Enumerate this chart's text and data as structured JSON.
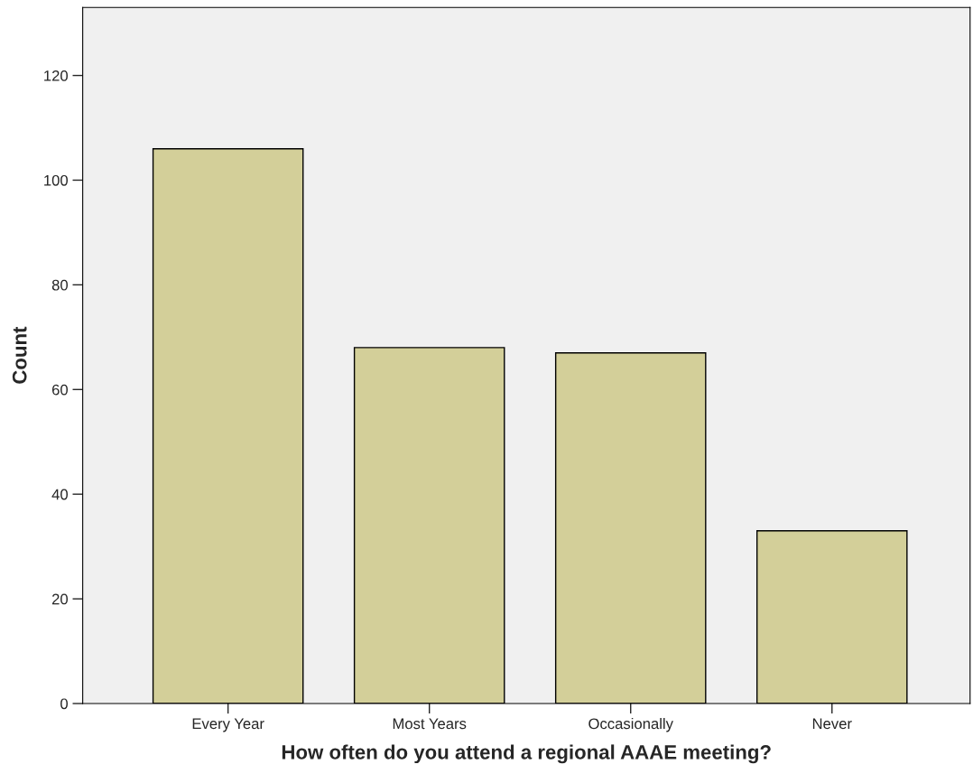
{
  "chart_data": {
    "type": "bar",
    "xlabel": "How often do you attend a regional AAAE meeting?",
    "ylabel": "Count",
    "categories": [
      "Every Year",
      "Most Years",
      "Occasionally",
      "Never"
    ],
    "values": [
      106,
      68,
      67,
      33
    ],
    "color": "#d3cf99",
    "ylim": [
      0,
      133
    ],
    "yticks": [
      0,
      20,
      40,
      60,
      80,
      100,
      120
    ],
    "grid": false
  }
}
